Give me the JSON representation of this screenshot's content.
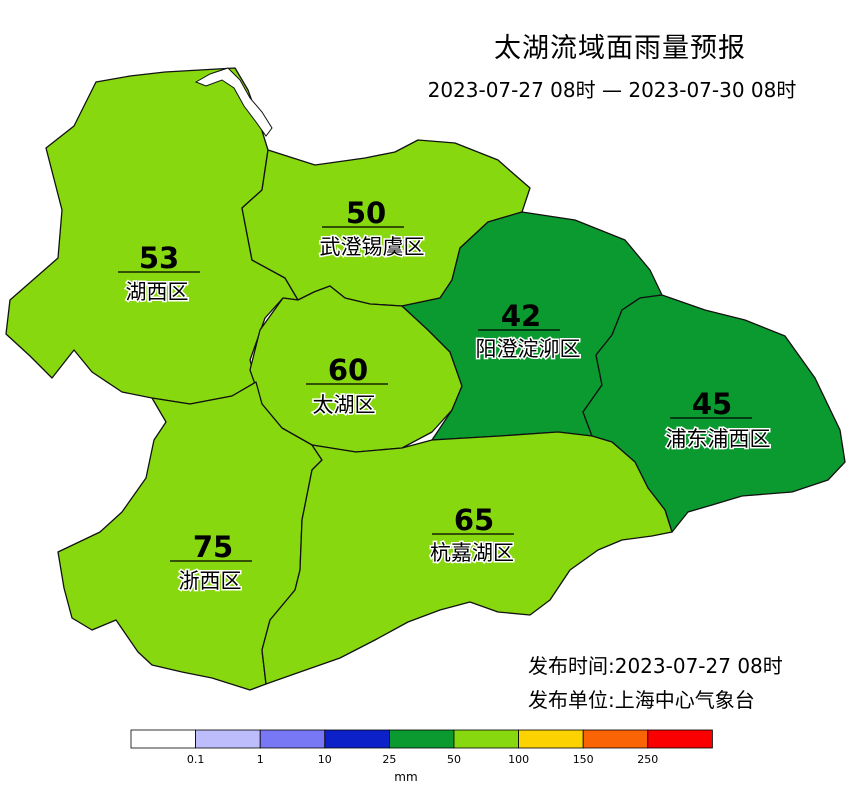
{
  "header": {
    "title": "太湖流域面雨量预报",
    "period": "2023-07-27 08时 — 2023-07-30 08时"
  },
  "regions": [
    {
      "name": "湖西区",
      "value": 53,
      "color": "#88d810"
    },
    {
      "name": "武澄锡虞区",
      "value": 50,
      "color": "#88d810"
    },
    {
      "name": "太湖区",
      "value": 60,
      "color": "#88d810"
    },
    {
      "name": "阳澄淀泖区",
      "value": 42,
      "color": "#0b9a2f"
    },
    {
      "name": "浦东浦西区",
      "value": 45,
      "color": "#0b9a2f"
    },
    {
      "name": "浙西区",
      "value": 75,
      "color": "#88d810"
    },
    {
      "name": "杭嘉湖区",
      "value": 65,
      "color": "#88d810"
    }
  ],
  "info": {
    "issue_time": "发布时间:2023-07-27 08时",
    "issuer": "发布单位:上海中心气象台"
  },
  "legend": {
    "unit": "mm",
    "colors": [
      "#ffffff",
      "#bdbdfb",
      "#7878f5",
      "#0c22c8",
      "#0b9a2f",
      "#88d810",
      "#fcd200",
      "#fb6404",
      "#fb0000"
    ],
    "ticks": [
      "0.1",
      "1",
      "10",
      "25",
      "50",
      "100",
      "150",
      "250"
    ]
  }
}
